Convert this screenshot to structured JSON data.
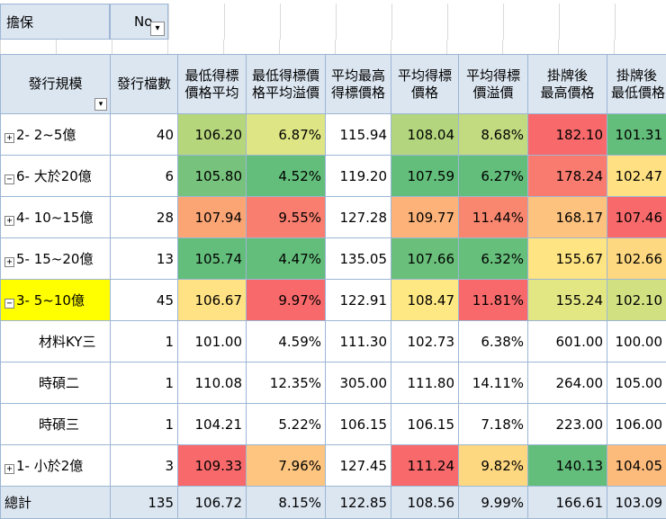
{
  "filter": {
    "label": "擔保",
    "value": "No",
    "filter_icon": "filter-dropdown-icon"
  },
  "headers": [
    {
      "line1": "發行規模",
      "line2": ""
    },
    {
      "line1": "發行檔數",
      "line2": ""
    },
    {
      "line1": "最低得標",
      "line2": "價格平均"
    },
    {
      "line1": "最低得標價",
      "line2": "格平均溢價"
    },
    {
      "line1": "平均最高",
      "line2": "得標價格"
    },
    {
      "line1": "平均得標",
      "line2": "價格"
    },
    {
      "line1": "平均得標",
      "line2": "價溢價"
    },
    {
      "line1": "掛牌後",
      "line2": "最高價格"
    },
    {
      "line1": "掛牌後",
      "line2": "最低價格"
    }
  ],
  "rows": [
    {
      "label": "2- 2~5億",
      "expander": "⊞",
      "count": "40",
      "v1": "106.20",
      "v2": "6.87%",
      "v3": "115.94",
      "v4": "108.04",
      "v5": "8.68%",
      "v6": "182.10",
      "v7": "101.31",
      "colors": [
        "#b6d67c",
        "#dde584",
        "#ffffff",
        "#b2d57d",
        "#c2da80",
        "#f8696b",
        "#63be7b"
      ]
    },
    {
      "label": "6- 大於20億",
      "expander": "⊟",
      "count": "6",
      "v1": "105.80",
      "v2": "4.52%",
      "v3": "119.20",
      "v4": "107.59",
      "v5": "6.27%",
      "v6": "178.24",
      "v7": "102.47",
      "colors": [
        "#77c37d",
        "#63be7b",
        "#ffffff",
        "#63be7b",
        "#63be7b",
        "#f97a6f",
        "#ffe183"
      ]
    },
    {
      "label": "4- 10~15億",
      "expander": "⊞",
      "count": "28",
      "v1": "107.94",
      "v2": "9.55%",
      "v3": "127.28",
      "v4": "109.77",
      "v5": "11.44%",
      "v6": "168.17",
      "v7": "107.46",
      "colors": [
        "#fba575",
        "#f97e6f",
        "#ffffff",
        "#fcb279",
        "#f98770",
        "#fdc27e",
        "#f8696b"
      ]
    },
    {
      "label": "5- 15~20億",
      "expander": "⊞",
      "count": "13",
      "v1": "105.74",
      "v2": "4.47%",
      "v3": "135.05",
      "v4": "107.66",
      "v5": "6.32%",
      "v6": "155.67",
      "v7": "102.66",
      "colors": [
        "#63be7b",
        "#63be7b",
        "#ffffff",
        "#6ac07b",
        "#66bf7b",
        "#fee482",
        "#fed880"
      ]
    },
    {
      "label": "3- 5~10億",
      "expander": "⊟",
      "count": "45",
      "v1": "106.67",
      "v2": "9.97%",
      "v3": "122.91",
      "v4": "108.47",
      "v5": "11.81%",
      "v6": "155.24",
      "v7": "102.10",
      "colors": [
        "#ffe283",
        "#f8696b",
        "#ffffff",
        "#fee883",
        "#f8696b",
        "#e3e783",
        "#d1e182"
      ],
      "highlight": true
    },
    {
      "label": "材料KY三",
      "child": true,
      "count": "1",
      "v1": "101.00",
      "v2": "4.59%",
      "v3": "111.30",
      "v4": "102.73",
      "v5": "6.38%",
      "v6": "601.00",
      "v7": "100.00"
    },
    {
      "label": "時碩二",
      "child": true,
      "count": "1",
      "v1": "110.08",
      "v2": "12.35%",
      "v3": "305.00",
      "v4": "111.80",
      "v5": "14.11%",
      "v6": "264.00",
      "v7": "105.00"
    },
    {
      "label": "時碩三",
      "child": true,
      "count": "1",
      "v1": "104.21",
      "v2": "5.22%",
      "v3": "106.15",
      "v4": "106.15",
      "v5": "7.18%",
      "v6": "223.00",
      "v7": "106.00"
    },
    {
      "label": "1- 小於2億",
      "expander": "⊞",
      "count": "3",
      "v1": "109.33",
      "v2": "7.96%",
      "v3": "127.45",
      "v4": "111.24",
      "v5": "9.82%",
      "v6": "140.13",
      "v7": "104.05",
      "colors": [
        "#f8696b",
        "#fdc57f",
        "#ffffff",
        "#f8696b",
        "#fed880",
        "#63be7b",
        "#fdbb7b"
      ]
    }
  ],
  "total": {
    "label": "總計",
    "count": "135",
    "v1": "106.72",
    "v2": "8.15%",
    "v3": "122.85",
    "v4": "108.56",
    "v5": "9.99%",
    "v6": "166.61",
    "v7": "103.09"
  }
}
